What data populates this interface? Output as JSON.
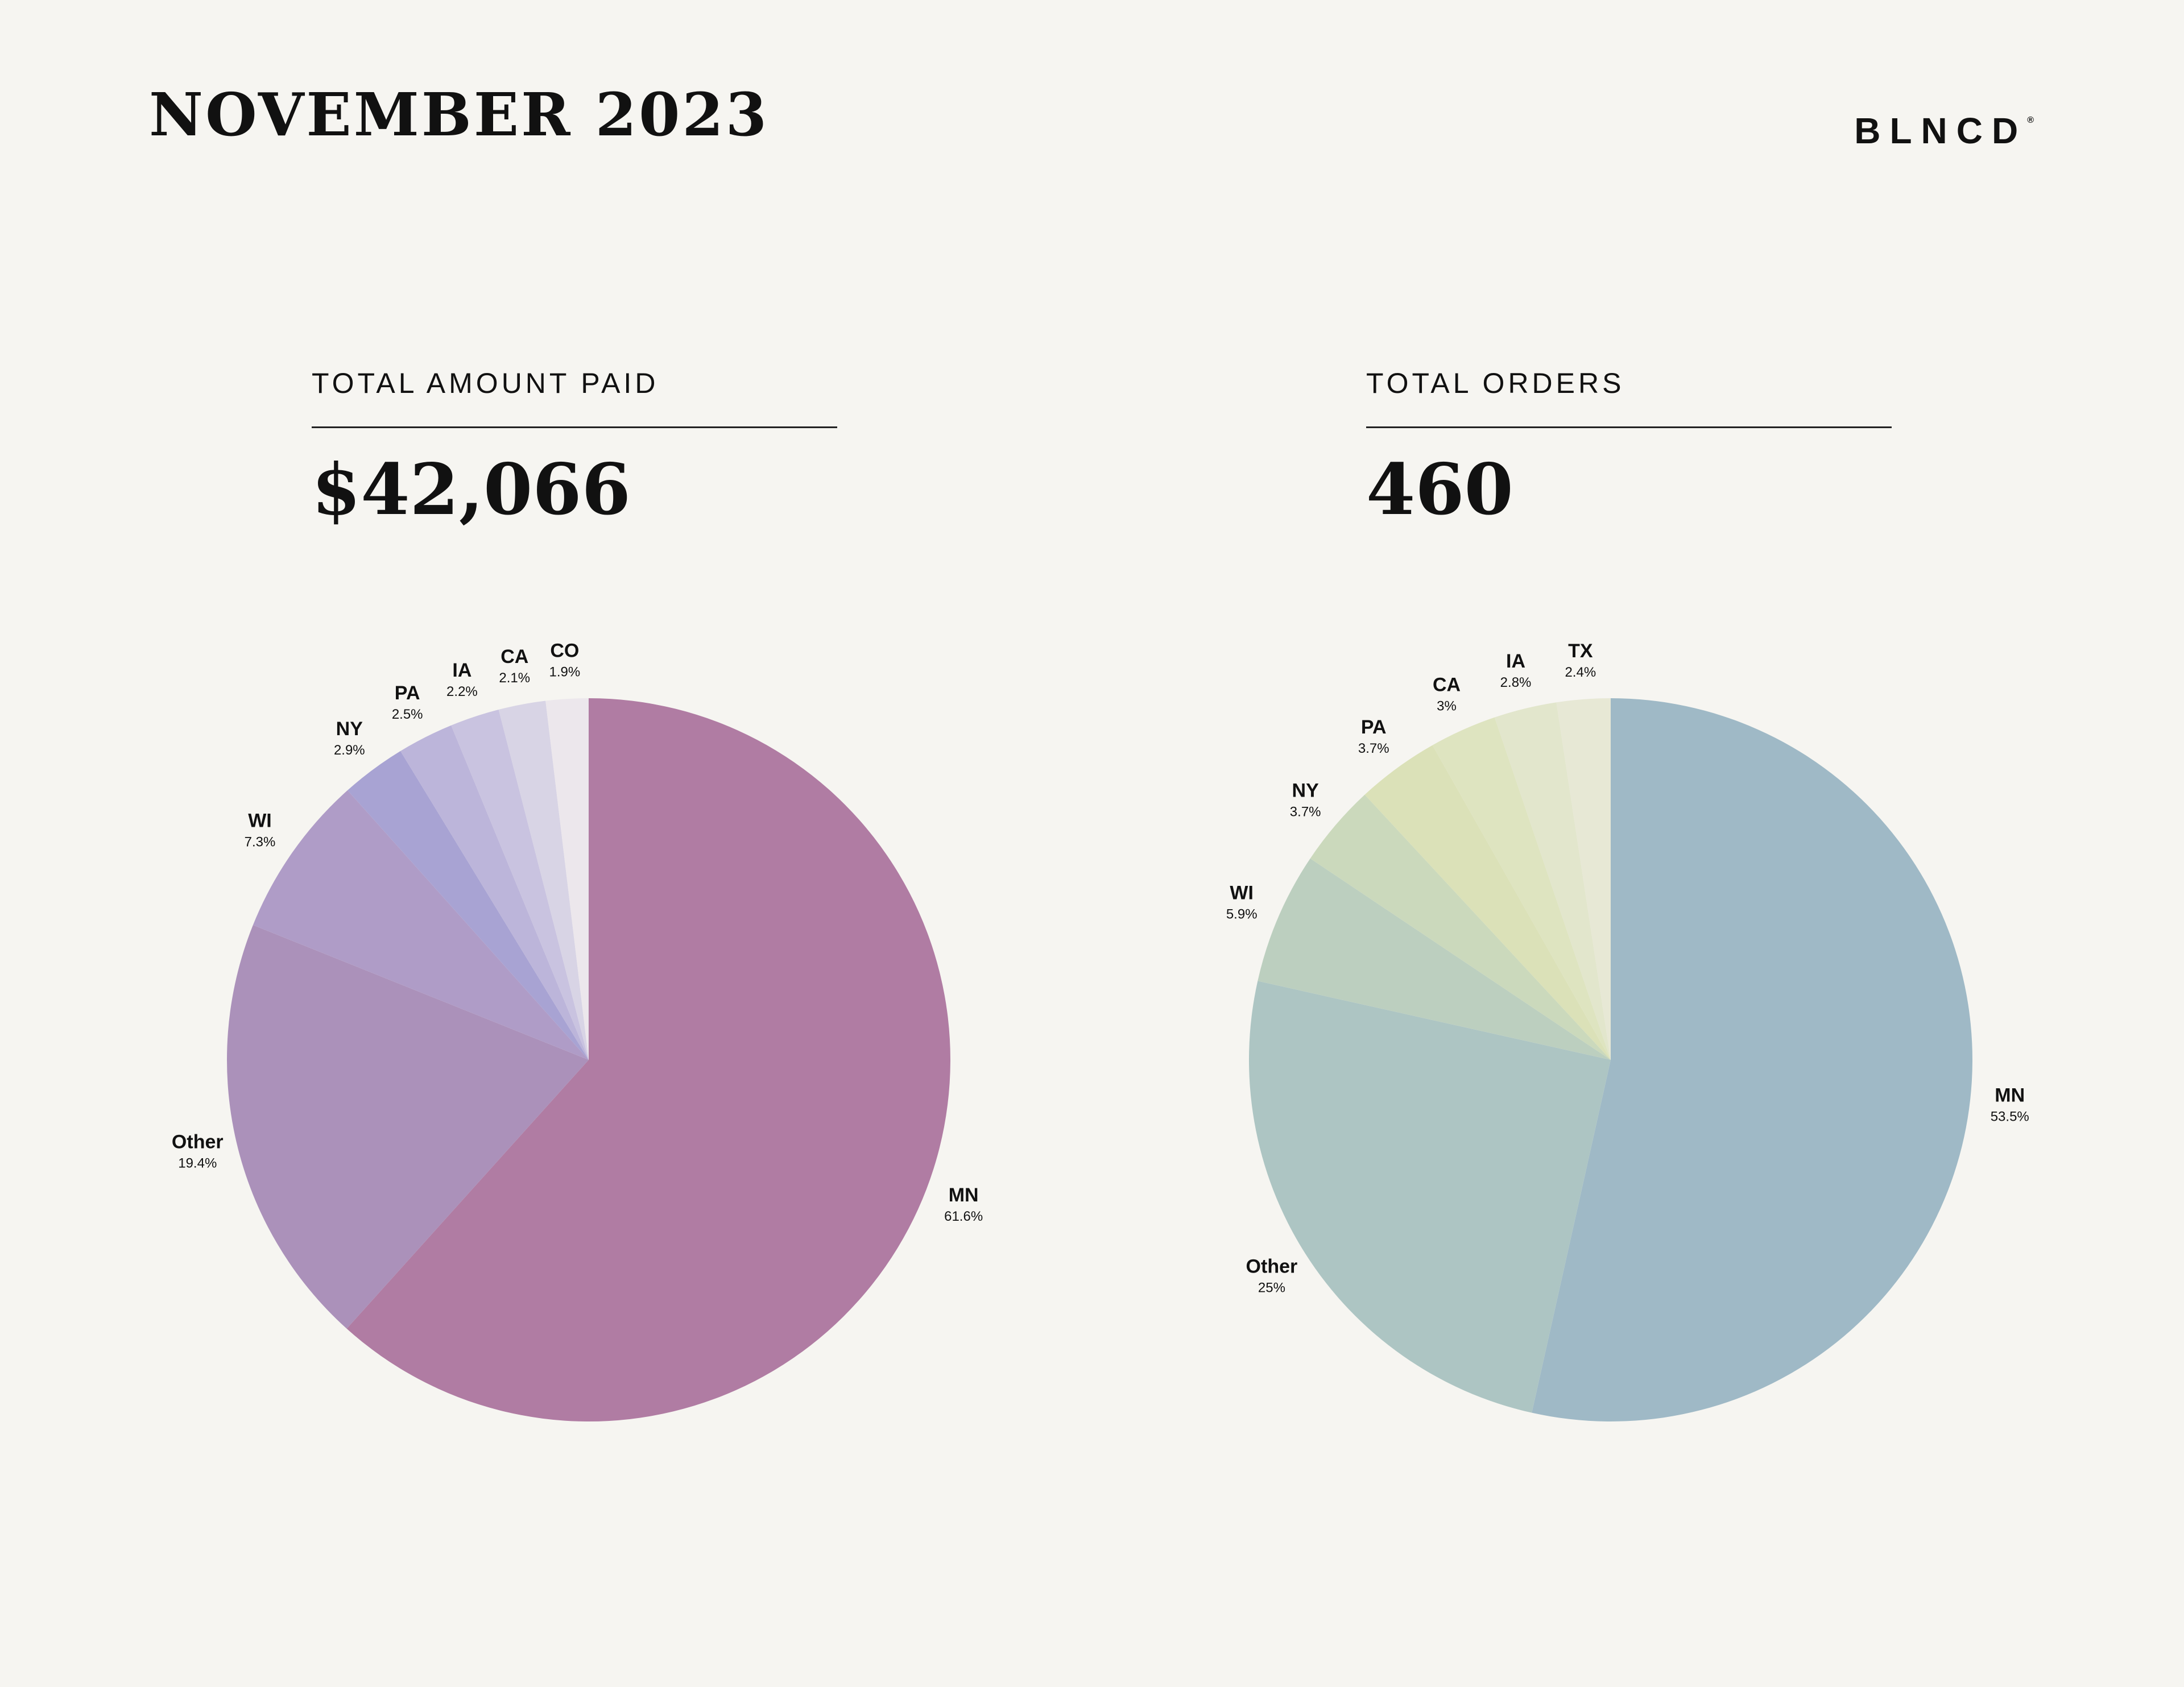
{
  "header": {
    "title": "NOVEMBER 2023",
    "brand": "BLNCD",
    "brand_mark": "®"
  },
  "panels": [
    {
      "label": "TOTAL AMOUNT PAID",
      "value": "$42,066"
    },
    {
      "label": "TOTAL ORDERS",
      "value": "460"
    }
  ],
  "chart_data": [
    {
      "type": "pie",
      "title": "",
      "categories": [
        "MN",
        "Other",
        "WI",
        "NY",
        "PA",
        "IA",
        "CA",
        "CO"
      ],
      "values": [
        61.6,
        19.4,
        7.3,
        2.9,
        2.5,
        2.2,
        2.1,
        1.9
      ],
      "value_labels": [
        "61.6%",
        "19.4%",
        "7.3%",
        "2.9%",
        "2.5%",
        "2.2%",
        "2.1%",
        "1.9%"
      ],
      "colors": [
        "#b07ca3",
        "#ab91ba",
        "#af9cc7",
        "#a8a3d3",
        "#bcb5da",
        "#c9c3e0",
        "#d8d4e5",
        "#ece7ec"
      ],
      "start": "12 o'clock, clockwise"
    },
    {
      "type": "pie",
      "title": "",
      "categories": [
        "MN",
        "Other",
        "WI",
        "NY",
        "PA",
        "CA",
        "IA",
        "TX"
      ],
      "values": [
        53.5,
        25,
        5.9,
        3.7,
        3.7,
        3,
        2.8,
        2.4
      ],
      "value_labels": [
        "53.5%",
        "25%",
        "5.9%",
        "3.7%",
        "3.7%",
        "3%",
        "2.8%",
        "2.4%"
      ],
      "colors": [
        "#9fb9c6",
        "#adc5c3",
        "#bccfbf",
        "#cbd9bc",
        "#dbe1b8",
        "#dee4c0",
        "#e2e6cc",
        "#e7e8d5"
      ],
      "start": "12 o'clock, clockwise"
    }
  ]
}
